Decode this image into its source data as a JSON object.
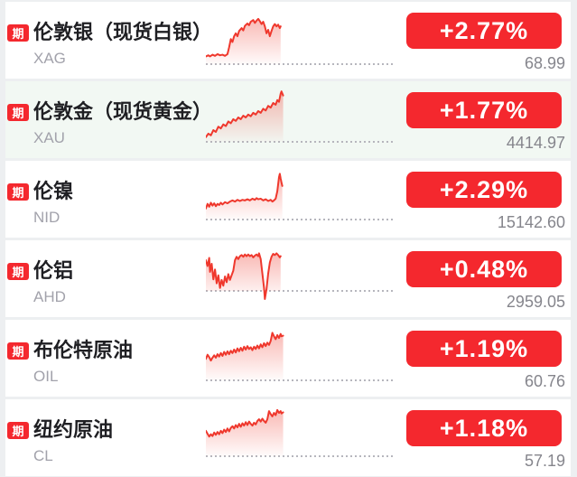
{
  "page": {
    "background": "#edeff1",
    "card_background": "#ffffff",
    "highlight_background": "#f2f8f3",
    "accent_red": "#f4282e",
    "line_red": "#ef382d",
    "fill_red": "#f0483c",
    "dot_gray": "#b6b6bd"
  },
  "rows": [
    {
      "badge": "期",
      "name": "伦敦银（现货白银）",
      "code": "XAG",
      "change": "+2.77%",
      "price": "68.99",
      "highlight": false,
      "sparkline": {
        "baseline": 96,
        "points": [
          [
            0,
            82
          ],
          [
            3,
            80
          ],
          [
            5,
            82
          ],
          [
            8,
            79
          ],
          [
            11,
            81
          ],
          [
            14,
            78
          ],
          [
            17,
            80
          ],
          [
            20,
            79
          ],
          [
            23,
            81
          ],
          [
            26,
            78
          ],
          [
            28,
            66
          ],
          [
            30,
            52
          ],
          [
            32,
            57
          ],
          [
            34,
            47
          ],
          [
            36,
            42
          ],
          [
            38,
            47
          ],
          [
            40,
            38
          ],
          [
            43,
            33
          ],
          [
            45,
            37
          ],
          [
            47,
            29
          ],
          [
            50,
            25
          ],
          [
            52,
            28
          ],
          [
            54,
            22
          ],
          [
            57,
            19
          ],
          [
            59,
            24
          ],
          [
            61,
            20
          ],
          [
            63,
            17
          ],
          [
            65,
            21
          ],
          [
            67,
            26
          ],
          [
            69,
            22
          ],
          [
            71,
            30
          ],
          [
            73,
            42
          ],
          [
            75,
            36
          ],
          [
            77,
            47
          ],
          [
            79,
            38
          ],
          [
            81,
            30
          ],
          [
            83,
            26
          ],
          [
            85,
            30
          ],
          [
            87,
            27
          ],
          [
            89,
            33
          ],
          [
            90,
            30
          ]
        ]
      }
    },
    {
      "badge": "期",
      "name": "伦敦金（现货黄金）",
      "code": "XAU",
      "change": "+1.77%",
      "price": "4414.97",
      "highlight": true,
      "sparkline": {
        "baseline": 92,
        "points": [
          [
            0,
            84
          ],
          [
            3,
            78
          ],
          [
            6,
            81
          ],
          [
            9,
            72
          ],
          [
            12,
            75
          ],
          [
            15,
            66
          ],
          [
            18,
            69
          ],
          [
            21,
            62
          ],
          [
            24,
            65
          ],
          [
            27,
            57
          ],
          [
            30,
            60
          ],
          [
            33,
            53
          ],
          [
            36,
            56
          ],
          [
            39,
            50
          ],
          [
            42,
            53
          ],
          [
            45,
            47
          ],
          [
            48,
            50
          ],
          [
            51,
            45
          ],
          [
            54,
            48
          ],
          [
            57,
            42
          ],
          [
            60,
            45
          ],
          [
            63,
            39
          ],
          [
            66,
            42
          ],
          [
            69,
            35
          ],
          [
            72,
            38
          ],
          [
            75,
            30
          ],
          [
            78,
            33
          ],
          [
            81,
            25
          ],
          [
            84,
            28
          ],
          [
            86,
            20
          ],
          [
            88,
            23
          ],
          [
            90,
            9
          ],
          [
            91,
            5
          ],
          [
            93,
            12
          ]
        ]
      }
    },
    {
      "badge": "期",
      "name": "伦镍",
      "code": "NID",
      "change": "+2.29%",
      "price": "15142.60",
      "highlight": false,
      "sparkline": {
        "baseline": 89,
        "points": [
          [
            0,
            70
          ],
          [
            2,
            62
          ],
          [
            4,
            67
          ],
          [
            6,
            60
          ],
          [
            8,
            65
          ],
          [
            10,
            61
          ],
          [
            12,
            66
          ],
          [
            14,
            62
          ],
          [
            16,
            64
          ],
          [
            18,
            60
          ],
          [
            20,
            63
          ],
          [
            23,
            59
          ],
          [
            26,
            61
          ],
          [
            29,
            58
          ],
          [
            32,
            56
          ],
          [
            35,
            58
          ],
          [
            38,
            55
          ],
          [
            41,
            57
          ],
          [
            44,
            55
          ],
          [
            47,
            56
          ],
          [
            50,
            54
          ],
          [
            53,
            56
          ],
          [
            56,
            53
          ],
          [
            59,
            55
          ],
          [
            61,
            52
          ],
          [
            63,
            54
          ],
          [
            66,
            53
          ],
          [
            69,
            56
          ],
          [
            72,
            54
          ],
          [
            75,
            57
          ],
          [
            78,
            55
          ],
          [
            80,
            58
          ],
          [
            82,
            56
          ],
          [
            84,
            53
          ],
          [
            86,
            40
          ],
          [
            88,
            16
          ],
          [
            89,
            10
          ],
          [
            90,
            18
          ],
          [
            91,
            25
          ],
          [
            92,
            31
          ]
        ]
      }
    },
    {
      "badge": "期",
      "name": "伦铝",
      "code": "AHD",
      "change": "+0.48%",
      "price": "2959.05",
      "highlight": false,
      "sparkline": {
        "baseline": 75,
        "points": [
          [
            0,
            22
          ],
          [
            2,
            32
          ],
          [
            4,
            18
          ],
          [
            5,
            42
          ],
          [
            7,
            28
          ],
          [
            9,
            55
          ],
          [
            11,
            38
          ],
          [
            13,
            62
          ],
          [
            15,
            48
          ],
          [
            17,
            70
          ],
          [
            19,
            56
          ],
          [
            21,
            66
          ],
          [
            23,
            50
          ],
          [
            25,
            60
          ],
          [
            27,
            46
          ],
          [
            29,
            56
          ],
          [
            31,
            48
          ],
          [
            33,
            40
          ],
          [
            35,
            22
          ],
          [
            37,
            16
          ],
          [
            39,
            20
          ],
          [
            41,
            15
          ],
          [
            43,
            13
          ],
          [
            45,
            16
          ],
          [
            47,
            12
          ],
          [
            49,
            15
          ],
          [
            51,
            12
          ],
          [
            53,
            15
          ],
          [
            55,
            13
          ],
          [
            57,
            17
          ],
          [
            59,
            14
          ],
          [
            61,
            12
          ],
          [
            63,
            15
          ],
          [
            64,
            10
          ],
          [
            66,
            20
          ],
          [
            68,
            45
          ],
          [
            70,
            70
          ],
          [
            71,
            89
          ],
          [
            73,
            72
          ],
          [
            75,
            45
          ],
          [
            77,
            26
          ],
          [
            79,
            16
          ],
          [
            81,
            11
          ],
          [
            83,
            13
          ],
          [
            85,
            10
          ],
          [
            87,
            13
          ],
          [
            89,
            17
          ],
          [
            90,
            15
          ]
        ]
      }
    },
    {
      "badge": "期",
      "name": "布伦特原油",
      "code": "OIL",
      "change": "+1.19%",
      "price": "60.76",
      "highlight": false,
      "sparkline": {
        "baseline": 92,
        "points": [
          [
            0,
            55
          ],
          [
            2,
            48
          ],
          [
            4,
            52
          ],
          [
            6,
            58
          ],
          [
            8,
            53
          ],
          [
            10,
            49
          ],
          [
            12,
            53
          ],
          [
            14,
            47
          ],
          [
            16,
            51
          ],
          [
            18,
            45
          ],
          [
            20,
            50
          ],
          [
            22,
            43
          ],
          [
            24,
            48
          ],
          [
            26,
            42
          ],
          [
            28,
            47
          ],
          [
            30,
            41
          ],
          [
            32,
            45
          ],
          [
            34,
            39
          ],
          [
            36,
            44
          ],
          [
            38,
            37
          ],
          [
            40,
            42
          ],
          [
            42,
            36
          ],
          [
            44,
            41
          ],
          [
            46,
            34
          ],
          [
            48,
            39
          ],
          [
            50,
            33
          ],
          [
            52,
            38
          ],
          [
            54,
            35
          ],
          [
            56,
            40
          ],
          [
            58,
            34
          ],
          [
            60,
            38
          ],
          [
            62,
            32
          ],
          [
            64,
            37
          ],
          [
            66,
            30
          ],
          [
            68,
            35
          ],
          [
            70,
            28
          ],
          [
            72,
            33
          ],
          [
            74,
            27
          ],
          [
            76,
            31
          ],
          [
            78,
            24
          ],
          [
            80,
            10
          ],
          [
            82,
            16
          ],
          [
            84,
            21
          ],
          [
            86,
            14
          ],
          [
            88,
            19
          ],
          [
            90,
            12
          ],
          [
            91,
            16
          ],
          [
            93,
            15
          ]
        ]
      }
    },
    {
      "badge": "期",
      "name": "纽约原油",
      "code": "CL",
      "change": "+1.18%",
      "price": "57.19",
      "highlight": false,
      "sparkline": {
        "baseline": 86,
        "points": [
          [
            0,
            42
          ],
          [
            2,
            47
          ],
          [
            4,
            52
          ],
          [
            6,
            48
          ],
          [
            8,
            51
          ],
          [
            10,
            45
          ],
          [
            12,
            49
          ],
          [
            14,
            44
          ],
          [
            16,
            48
          ],
          [
            18,
            42
          ],
          [
            20,
            46
          ],
          [
            22,
            40
          ],
          [
            24,
            44
          ],
          [
            26,
            38
          ],
          [
            28,
            43
          ],
          [
            30,
            37
          ],
          [
            32,
            34
          ],
          [
            34,
            38
          ],
          [
            36,
            32
          ],
          [
            38,
            36
          ],
          [
            40,
            30
          ],
          [
            42,
            35
          ],
          [
            44,
            29
          ],
          [
            46,
            33
          ],
          [
            48,
            27
          ],
          [
            50,
            32
          ],
          [
            52,
            26
          ],
          [
            54,
            30
          ],
          [
            56,
            33
          ],
          [
            58,
            28
          ],
          [
            60,
            31
          ],
          [
            62,
            25
          ],
          [
            64,
            22
          ],
          [
            66,
            26
          ],
          [
            68,
            21
          ],
          [
            70,
            25
          ],
          [
            72,
            28
          ],
          [
            74,
            22
          ],
          [
            76,
            8
          ],
          [
            78,
            13
          ],
          [
            80,
            17
          ],
          [
            82,
            11
          ],
          [
            84,
            15
          ],
          [
            86,
            6
          ],
          [
            88,
            11
          ],
          [
            90,
            8
          ],
          [
            91,
            12
          ],
          [
            93,
            10
          ]
        ]
      }
    }
  ]
}
